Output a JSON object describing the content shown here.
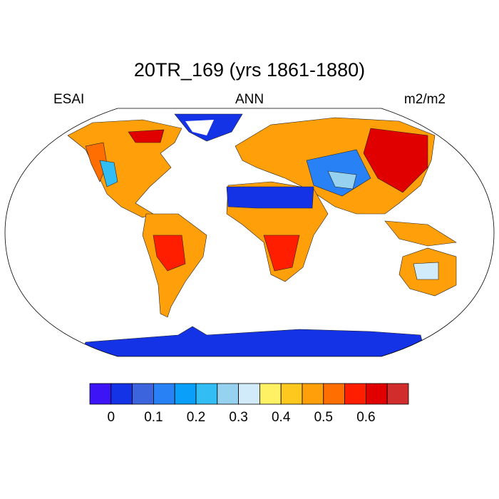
{
  "title": "20TR_169 (yrs 1861-1880)",
  "left_string": "ESAI",
  "center_string": "ANN",
  "right_string": "m2/m2",
  "colorbar": {
    "colors": [
      "#3c14f5",
      "#1432e6",
      "#3c64dc",
      "#2882f5",
      "#0aa0fa",
      "#32bef5",
      "#96d2f0",
      "#d2ebfa",
      "#fff064",
      "#ffc81e",
      "#ffa00a",
      "#ff6e00",
      "#ff1e00",
      "#e10000",
      "#d22d2d"
    ],
    "range": [
      -0.05,
      0.7
    ],
    "ticks": [
      0,
      0.1,
      0.2,
      0.3,
      0.4,
      0.5,
      0.6
    ]
  }
}
